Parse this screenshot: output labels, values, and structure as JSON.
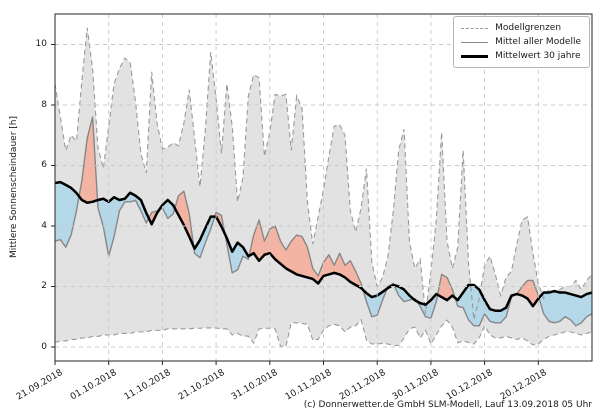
{
  "figure": {
    "ylabel": "Mittlere Sonnenscheindauer [h]",
    "caption": "(c) Donnerwetter.de GmbH SLM-Modell, Lauf 13.09.2018 05 Uhr"
  },
  "legend": {
    "items": [
      {
        "label": "Modellgrenzen",
        "style": "dashed"
      },
      {
        "label": "Mittel aller Modelle",
        "style": "gray"
      },
      {
        "label": "Mittelwert 30 jahre",
        "style": "black"
      }
    ]
  },
  "chart_data": {
    "type": "area",
    "title": "",
    "xlabel": "",
    "ylabel": "Mittlere Sonnenscheindauer [h]",
    "ylim": [
      -0.46,
      11.0
    ],
    "y_ticks": [
      0,
      2,
      4,
      6,
      8,
      10
    ],
    "grid": true,
    "legend_position": "upper right",
    "x_unit": "days since 21.09.2018, daily values",
    "x_tick_days": [
      0,
      10,
      20,
      30,
      40,
      50,
      60,
      70,
      80,
      90
    ],
    "x_tick_labels": [
      "21.09.2018",
      "01.10.2018",
      "11.10.2018",
      "21.10.2018",
      "31.10.2018",
      "10.11.2018",
      "20.11.2018",
      "30.11.2018",
      "10.12.2018",
      "20.12.2018"
    ],
    "x_range_days": [
      0,
      100
    ],
    "series": [
      {
        "name": "Modellgrenzen (obere Grenze)",
        "style": "dashed",
        "values": [
          8.7,
          7.6,
          6.5,
          7.0,
          6.8,
          8.8,
          10.55,
          9.2,
          6.6,
          5.9,
          7.3,
          8.7,
          9.2,
          9.55,
          9.4,
          8.1,
          6.4,
          5.75,
          9.1,
          7.4,
          6.55,
          6.6,
          6.75,
          6.65,
          7.4,
          8.5,
          6.9,
          5.3,
          7.2,
          9.75,
          8.2,
          6.4,
          8.7,
          7.3,
          4.8,
          5.6,
          8.3,
          9.0,
          8.9,
          6.3,
          7.1,
          8.35,
          8.3,
          8.35,
          6.5,
          8.3,
          7.9,
          4.8,
          3.4,
          4.3,
          5.2,
          6.3,
          7.3,
          7.35,
          7.0,
          4.5,
          3.8,
          4.6,
          5.9,
          2.8,
          2.0,
          2.3,
          3.0,
          4.5,
          6.5,
          7.2,
          3.5,
          2.6,
          2.9,
          1.1,
          2.5,
          4.2,
          7.1,
          3.5,
          2.6,
          3.3,
          6.5,
          2.8,
          0.9,
          1.6,
          2.7,
          3.0,
          2.4,
          1.7,
          2.3,
          2.5,
          3.4,
          4.2,
          4.3,
          3.1,
          2.1,
          1.6,
          1.9,
          1.8,
          1.9,
          2.0,
          2.0,
          2.2,
          1.9,
          2.2,
          2.4
        ]
      },
      {
        "name": "Modellgrenzen (untere Grenze)",
        "style": "dashed",
        "values": [
          0.15,
          0.2,
          0.2,
          0.25,
          0.25,
          0.3,
          0.3,
          0.35,
          0.35,
          0.4,
          0.4,
          0.4,
          0.45,
          0.45,
          0.45,
          0.5,
          0.5,
          0.5,
          0.55,
          0.55,
          0.55,
          0.6,
          0.6,
          0.6,
          0.6,
          0.6,
          0.62,
          0.62,
          0.63,
          0.63,
          0.63,
          0.6,
          0.6,
          0.4,
          0.45,
          0.36,
          0.36,
          0.13,
          0.6,
          0.62,
          0.62,
          0.6,
          0.02,
          0.02,
          0.8,
          0.8,
          0.78,
          0.75,
          0.23,
          0.25,
          0.56,
          0.7,
          0.75,
          0.7,
          0.5,
          0.66,
          0.7,
          0.9,
          0.23,
          0.1,
          0.1,
          0.12,
          0.1,
          0.05,
          0.05,
          0.3,
          0.6,
          0.66,
          0.3,
          0.55,
          0.1,
          0.4,
          0.7,
          0.89,
          0.66,
          0.14,
          0.2,
          0.15,
          0.1,
          0.3,
          0.7,
          0.4,
          0.3,
          0.3,
          0.35,
          0.3,
          0.25,
          0.3,
          0.2,
          0.07,
          0.1,
          0.25,
          0.35,
          0.4,
          0.45,
          0.5,
          0.5,
          0.45,
          0.4,
          0.45,
          0.5
        ]
      },
      {
        "name": "Mittel aller Modelle",
        "style": "solid-gray",
        "values": [
          3.5,
          3.55,
          3.3,
          3.7,
          4.5,
          5.5,
          6.9,
          7.6,
          4.6,
          3.98,
          3.0,
          3.65,
          4.5,
          4.8,
          4.8,
          4.85,
          4.5,
          4.1,
          4.45,
          4.5,
          4.6,
          4.25,
          4.4,
          5.0,
          5.15,
          4.4,
          3.1,
          2.95,
          3.45,
          3.9,
          4.45,
          4.35,
          3.4,
          2.45,
          2.55,
          3.0,
          2.9,
          3.7,
          4.2,
          3.5,
          3.9,
          4.0,
          3.5,
          3.2,
          3.5,
          3.7,
          3.65,
          3.3,
          2.6,
          2.35,
          2.8,
          3.05,
          2.7,
          3.1,
          2.7,
          2.85,
          2.5,
          2.1,
          1.5,
          1.0,
          1.05,
          1.55,
          2.0,
          2.1,
          1.7,
          1.5,
          1.55,
          1.6,
          1.35,
          1.0,
          0.95,
          1.5,
          2.4,
          2.3,
          1.9,
          1.35,
          1.3,
          0.9,
          0.7,
          0.7,
          1.1,
          0.85,
          0.8,
          0.8,
          1.0,
          1.65,
          1.75,
          2.0,
          2.2,
          2.2,
          1.7,
          1.1,
          0.85,
          0.8,
          0.85,
          1.0,
          0.9,
          0.7,
          0.8,
          1.0,
          1.1
        ]
      },
      {
        "name": "Mittelwert 30 jahre",
        "style": "thick-black",
        "values": [
          5.42,
          5.45,
          5.36,
          5.26,
          5.09,
          4.86,
          4.77,
          4.8,
          4.86,
          4.9,
          4.8,
          4.95,
          4.86,
          4.9,
          5.1,
          5.0,
          4.86,
          4.43,
          4.06,
          4.43,
          4.69,
          4.86,
          4.69,
          4.36,
          4.03,
          3.65,
          3.25,
          3.54,
          3.93,
          4.31,
          4.31,
          3.98,
          3.6,
          3.15,
          3.45,
          3.3,
          3.0,
          3.1,
          2.85,
          3.05,
          3.1,
          2.9,
          2.75,
          2.6,
          2.5,
          2.4,
          2.35,
          2.3,
          2.25,
          2.1,
          2.35,
          2.4,
          2.45,
          2.4,
          2.3,
          2.15,
          2.05,
          1.95,
          1.78,
          1.65,
          1.7,
          1.82,
          1.95,
          2.05,
          2.0,
          1.9,
          1.7,
          1.55,
          1.45,
          1.4,
          1.55,
          1.75,
          1.65,
          1.55,
          1.7,
          1.55,
          1.8,
          2.05,
          2.05,
          1.9,
          1.55,
          1.25,
          1.2,
          1.2,
          1.3,
          1.7,
          1.75,
          1.7,
          1.6,
          1.35,
          1.6,
          1.8,
          1.8,
          1.85,
          1.8,
          1.8,
          1.75,
          1.7,
          1.65,
          1.75,
          1.8
        ]
      }
    ],
    "shading": {
      "band_between": [
        "Modellgrenzen (obere Grenze)",
        "Modellgrenzen (untere Grenze)"
      ],
      "diff_between": [
        "Mittel aller Modelle",
        "Mittelwert 30 jahre"
      ],
      "above_meaning": "Modellmittel ueber 30-jaehrigem Mittel (rot)",
      "below_meaning": "Modellmittel unter 30-jaehrigem Mittel (blau)"
    },
    "colors": {
      "band_fill": "#e2e2e2",
      "band_edge": "#999999",
      "diff_above": "#f3b4a3",
      "diff_below": "#b5d8e9",
      "model_mean_line": "#878787",
      "mean30_line": "#000000",
      "grid": "#c9c9c9",
      "spine": "#262626"
    }
  }
}
